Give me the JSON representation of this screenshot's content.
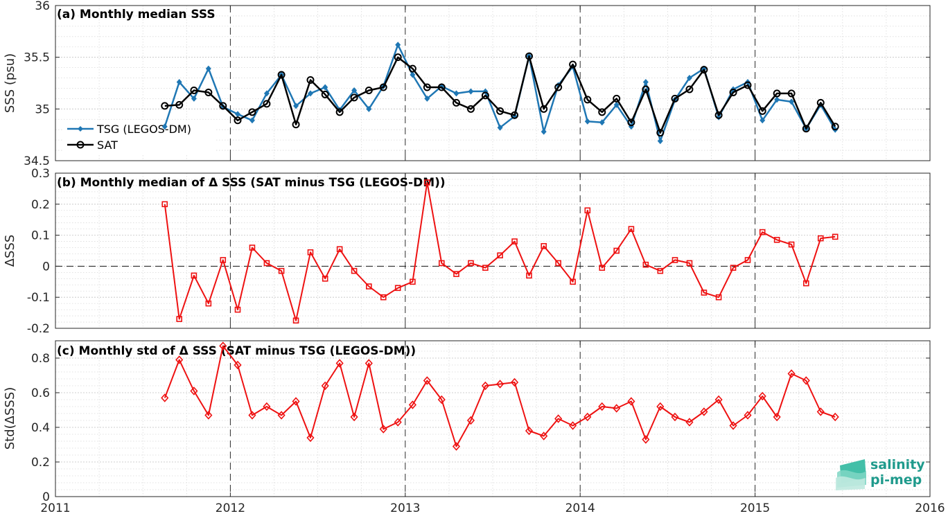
{
  "colors": {
    "tsg": "#1f77b4",
    "sat": "#000000",
    "delta": "#ee1111",
    "grid": "#d9d9d9",
    "axis": "#262626",
    "logo": "#1f9a8c"
  },
  "logo": {
    "line1": "salinity",
    "line2": "pi-mep"
  },
  "chart_data": [
    {
      "type": "line",
      "title": "(a) Monthly median SSS",
      "ylabel": "SSS (psu)",
      "xlim": [
        2011,
        2016
      ],
      "ylim": [
        34.5,
        36
      ],
      "yticks": [
        34.5,
        35,
        35.5,
        36
      ],
      "ytick_labels": [
        "34.5",
        "35",
        "35.5",
        "36"
      ],
      "grid": true,
      "legend_position": "left",
      "series": [
        {
          "name": "TSG (LEGOS-DM)",
          "marker": "filled-diamond",
          "x": [
            2011.625,
            2011.708,
            2011.792,
            2011.875,
            2011.958,
            2012.042,
            2012.125,
            2012.208,
            2012.292,
            2012.375,
            2012.458,
            2012.542,
            2012.625,
            2012.708,
            2012.792,
            2012.875,
            2012.958,
            2013.042,
            2013.125,
            2013.208,
            2013.292,
            2013.375,
            2013.458,
            2013.542,
            2013.625,
            2013.708,
            2013.792,
            2013.875,
            2013.958,
            2014.042,
            2014.125,
            2014.208,
            2014.292,
            2014.375,
            2014.458,
            2014.542,
            2014.625,
            2014.708,
            2014.792,
            2014.875,
            2014.958,
            2015.042,
            2015.125,
            2015.208,
            2015.292,
            2015.375,
            2015.458
          ],
          "values": [
            34.83,
            35.26,
            35.1,
            35.39,
            35.02,
            34.95,
            34.89,
            35.15,
            35.33,
            35.03,
            35.15,
            35.21,
            34.99,
            35.18,
            35.0,
            35.22,
            35.62,
            35.33,
            35.1,
            35.22,
            35.15,
            35.17,
            35.17,
            34.82,
            34.93,
            35.51,
            34.78,
            35.23,
            35.41,
            34.88,
            34.87,
            35.04,
            34.83,
            35.26,
            34.69,
            35.09,
            35.3,
            35.39,
            34.92,
            35.19,
            35.26,
            34.89,
            35.09,
            35.07,
            34.81,
            35.04,
            34.8
          ]
        },
        {
          "name": "SAT",
          "marker": "open-circle",
          "x": [
            2011.625,
            2011.708,
            2011.792,
            2011.875,
            2011.958,
            2012.042,
            2012.125,
            2012.208,
            2012.292,
            2012.375,
            2012.458,
            2012.542,
            2012.625,
            2012.708,
            2012.792,
            2012.875,
            2012.958,
            2013.042,
            2013.125,
            2013.208,
            2013.292,
            2013.375,
            2013.458,
            2013.542,
            2013.625,
            2013.708,
            2013.792,
            2013.875,
            2013.958,
            2014.042,
            2014.125,
            2014.208,
            2014.292,
            2014.375,
            2014.458,
            2014.542,
            2014.625,
            2014.708,
            2014.792,
            2014.875,
            2014.958,
            2015.042,
            2015.125,
            2015.208,
            2015.292,
            2015.375,
            2015.458
          ],
          "values": [
            35.03,
            35.04,
            35.18,
            35.16,
            35.03,
            34.89,
            34.97,
            35.05,
            35.33,
            34.85,
            35.28,
            35.14,
            34.97,
            35.11,
            35.18,
            35.21,
            35.5,
            35.39,
            35.21,
            35.21,
            35.06,
            35.0,
            35.13,
            34.98,
            34.94,
            35.51,
            35.0,
            35.21,
            35.43,
            35.09,
            34.97,
            35.1,
            34.87,
            35.19,
            34.77,
            35.1,
            35.19,
            35.38,
            34.94,
            35.16,
            35.23,
            34.98,
            35.15,
            35.15,
            34.81,
            35.06,
            34.83
          ]
        }
      ]
    },
    {
      "type": "line",
      "title": "(b) Monthly median of Δ SSS (SAT minus TSG (LEGOS-DM))",
      "ylabel": "ΔSSS",
      "xlim": [
        2011,
        2016
      ],
      "ylim": [
        -0.2,
        0.3
      ],
      "yticks": [
        -0.2,
        -0.1,
        0,
        0.1,
        0.2,
        0.3
      ],
      "ytick_labels": [
        "-0.2",
        "-0.1",
        "0",
        "0.1",
        "0.2",
        "0.3"
      ],
      "grid": true,
      "zero_line": true,
      "series": [
        {
          "marker": "open-square",
          "x": [
            2011.625,
            2011.708,
            2011.792,
            2011.875,
            2011.958,
            2012.042,
            2012.125,
            2012.208,
            2012.292,
            2012.375,
            2012.458,
            2012.542,
            2012.625,
            2012.708,
            2012.792,
            2012.875,
            2012.958,
            2013.042,
            2013.125,
            2013.208,
            2013.292,
            2013.375,
            2013.458,
            2013.542,
            2013.625,
            2013.708,
            2013.792,
            2013.875,
            2013.958,
            2014.042,
            2014.125,
            2014.208,
            2014.292,
            2014.375,
            2014.458,
            2014.542,
            2014.625,
            2014.708,
            2014.792,
            2014.875,
            2014.958,
            2015.042,
            2015.125,
            2015.208,
            2015.292,
            2015.375,
            2015.458
          ],
          "values": [
            0.2,
            -0.17,
            -0.03,
            -0.12,
            0.02,
            -0.14,
            0.06,
            0.01,
            -0.015,
            -0.175,
            0.045,
            -0.04,
            0.055,
            -0.015,
            -0.065,
            -0.1,
            -0.07,
            -0.05,
            0.27,
            0.01,
            -0.025,
            0.01,
            -0.005,
            0.035,
            0.08,
            -0.03,
            0.065,
            0.01,
            -0.05,
            0.18,
            -0.005,
            0.05,
            0.12,
            0.005,
            -0.015,
            0.02,
            0.01,
            -0.085,
            -0.1,
            -0.005,
            0.02,
            0.11,
            0.085,
            0.07,
            -0.055,
            0.09,
            0.095
          ]
        }
      ]
    },
    {
      "type": "line",
      "title": "(c) Monthly std of Δ SSS (SAT minus TSG (LEGOS-DM))",
      "ylabel": "Std(ΔSSS)",
      "xlim": [
        2011,
        2016
      ],
      "ylim": [
        0,
        0.9
      ],
      "yticks": [
        0,
        0.2,
        0.4,
        0.6,
        0.8
      ],
      "ytick_labels": [
        "0",
        "0.2",
        "0.4",
        "0.6",
        "0.8"
      ],
      "xticks": [
        2011,
        2012,
        2013,
        2014,
        2015,
        2016
      ],
      "xtick_labels": [
        "2011",
        "2012",
        "2013",
        "2014",
        "2015",
        "2016"
      ],
      "grid": true,
      "series": [
        {
          "marker": "open-diamond",
          "x": [
            2011.625,
            2011.708,
            2011.792,
            2011.875,
            2011.958,
            2012.042,
            2012.125,
            2012.208,
            2012.292,
            2012.375,
            2012.458,
            2012.542,
            2012.625,
            2012.708,
            2012.792,
            2012.875,
            2012.958,
            2013.042,
            2013.125,
            2013.208,
            2013.292,
            2013.375,
            2013.458,
            2013.542,
            2013.625,
            2013.708,
            2013.792,
            2013.875,
            2013.958,
            2014.042,
            2014.125,
            2014.208,
            2014.292,
            2014.375,
            2014.458,
            2014.542,
            2014.625,
            2014.708,
            2014.792,
            2014.875,
            2014.958,
            2015.042,
            2015.125,
            2015.208,
            2015.292,
            2015.375,
            2015.458
          ],
          "values": [
            0.57,
            0.79,
            0.61,
            0.47,
            0.87,
            0.76,
            0.47,
            0.52,
            0.47,
            0.55,
            0.34,
            0.64,
            0.77,
            0.46,
            0.77,
            0.39,
            0.43,
            0.53,
            0.67,
            0.56,
            0.29,
            0.44,
            0.64,
            0.65,
            0.66,
            0.38,
            0.35,
            0.45,
            0.41,
            0.46,
            0.52,
            0.51,
            0.55,
            0.33,
            0.52,
            0.46,
            0.43,
            0.49,
            0.56,
            0.41,
            0.47,
            0.58,
            0.46,
            0.71,
            0.67,
            0.49,
            0.46
          ]
        }
      ]
    }
  ]
}
